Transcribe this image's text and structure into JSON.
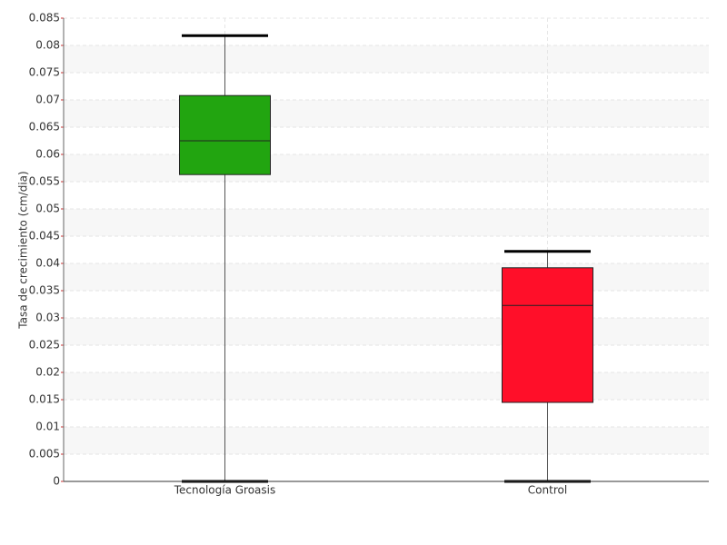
{
  "chart_data": {
    "type": "box",
    "y_label": "Tasa de crecimiento (cm/dia)",
    "categories": [
      "Tecnología Groasis",
      "Control"
    ],
    "colors": [
      "#22a510",
      "#ff0f29"
    ],
    "min": [
      0,
      0
    ],
    "q1": [
      0.0563,
      0.0145
    ],
    "median": [
      0.0625,
      0.0323
    ],
    "q3": [
      0.0708,
      0.0392
    ],
    "max": [
      0.0818,
      0.0422
    ],
    "ylim": [
      0,
      0.085
    ],
    "yticks": [
      0,
      0.005,
      0.01,
      0.015,
      0.02,
      0.025,
      0.03,
      0.035,
      0.04,
      0.045,
      0.05,
      0.055,
      0.06,
      0.065,
      0.07,
      0.075,
      0.08,
      0.085
    ],
    "grid": true
  }
}
